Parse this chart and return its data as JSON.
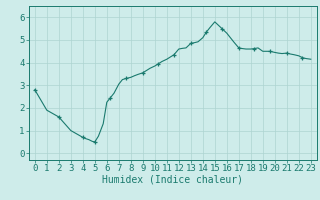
{
  "x": [
    0,
    0.5,
    1,
    1.5,
    2,
    2.5,
    3,
    3.5,
    4,
    4.2,
    4.5,
    4.8,
    5,
    5.3,
    5.7,
    6,
    6.3,
    6.6,
    7,
    7.3,
    7.6,
    8,
    8.3,
    8.6,
    9,
    9.3,
    9.6,
    10,
    10.3,
    10.6,
    11,
    11.3,
    11.6,
    12,
    12.3,
    12.6,
    13,
    13.3,
    13.6,
    14,
    14.3,
    14.6,
    15,
    15.3,
    15.6,
    16,
    16.3,
    16.6,
    17,
    17.3,
    17.6,
    18,
    18.3,
    18.6,
    19,
    19.3,
    19.6,
    20,
    20.3,
    20.6,
    21,
    21.3,
    21.6,
    22,
    22.3,
    22.6,
    23
  ],
  "y": [
    2.8,
    2.35,
    1.9,
    1.75,
    1.6,
    1.3,
    1.0,
    0.85,
    0.7,
    0.65,
    0.6,
    0.52,
    0.5,
    0.75,
    1.3,
    2.25,
    2.45,
    2.65,
    3.05,
    3.25,
    3.3,
    3.35,
    3.42,
    3.48,
    3.55,
    3.65,
    3.75,
    3.85,
    3.95,
    4.05,
    4.15,
    4.25,
    4.35,
    4.6,
    4.63,
    4.65,
    4.85,
    4.88,
    4.92,
    5.1,
    5.35,
    5.55,
    5.8,
    5.65,
    5.5,
    5.3,
    5.1,
    4.9,
    4.65,
    4.62,
    4.6,
    4.6,
    4.62,
    4.65,
    4.5,
    4.5,
    4.5,
    4.45,
    4.42,
    4.4,
    4.42,
    4.38,
    4.35,
    4.3,
    4.22,
    4.18,
    4.15
  ],
  "line_color": "#1a7a6e",
  "marker": "+",
  "marker_size": 3.5,
  "marker_every": 4,
  "bg_color": "#ceecea",
  "grid_color": "#aed4d1",
  "axis_color": "#1a7a6e",
  "xlabel": "Humidex (Indice chaleur)",
  "xlabel_fontsize": 7,
  "tick_fontsize": 6.5,
  "xlim": [
    -0.5,
    23.5
  ],
  "ylim": [
    -0.3,
    6.5
  ],
  "yticks": [
    0,
    1,
    2,
    3,
    4,
    5,
    6
  ],
  "xticks": [
    0,
    1,
    2,
    3,
    4,
    5,
    6,
    7,
    8,
    9,
    10,
    11,
    12,
    13,
    14,
    15,
    16,
    17,
    18,
    19,
    20,
    21,
    22,
    23
  ]
}
